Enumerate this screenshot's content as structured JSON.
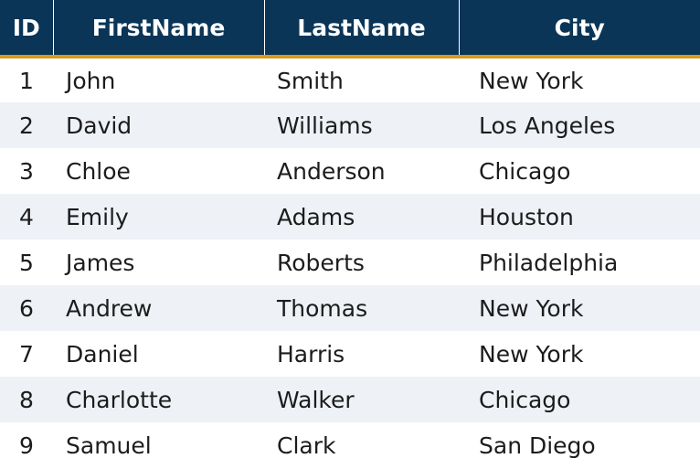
{
  "table": {
    "headers": {
      "id": "ID",
      "first": "FirstName",
      "last": "LastName",
      "city": "City"
    },
    "rows": [
      {
        "id": "1",
        "first": "John",
        "last": "Smith",
        "city": "New York"
      },
      {
        "id": "2",
        "first": "David",
        "last": "Williams",
        "city": "Los Angeles"
      },
      {
        "id": "3",
        "first": "Chloe",
        "last": "Anderson",
        "city": "Chicago"
      },
      {
        "id": "4",
        "first": "Emily",
        "last": "Adams",
        "city": "Houston"
      },
      {
        "id": "5",
        "first": "James",
        "last": "Roberts",
        "city": "Philadelphia"
      },
      {
        "id": "6",
        "first": "Andrew",
        "last": "Thomas",
        "city": "New York"
      },
      {
        "id": "7",
        "first": "Daniel",
        "last": "Harris",
        "city": "New York"
      },
      {
        "id": "8",
        "first": "Charlotte",
        "last": "Walker",
        "city": "Chicago"
      },
      {
        "id": "9",
        "first": "Samuel",
        "last": "Clark",
        "city": "San Diego"
      }
    ]
  },
  "colors": {
    "header_bg": "#0a3557",
    "header_accent": "#d89a1c",
    "header_text": "#ffffff",
    "row_alt_bg": "#eef1f6",
    "row_text": "#1c1c1c"
  }
}
